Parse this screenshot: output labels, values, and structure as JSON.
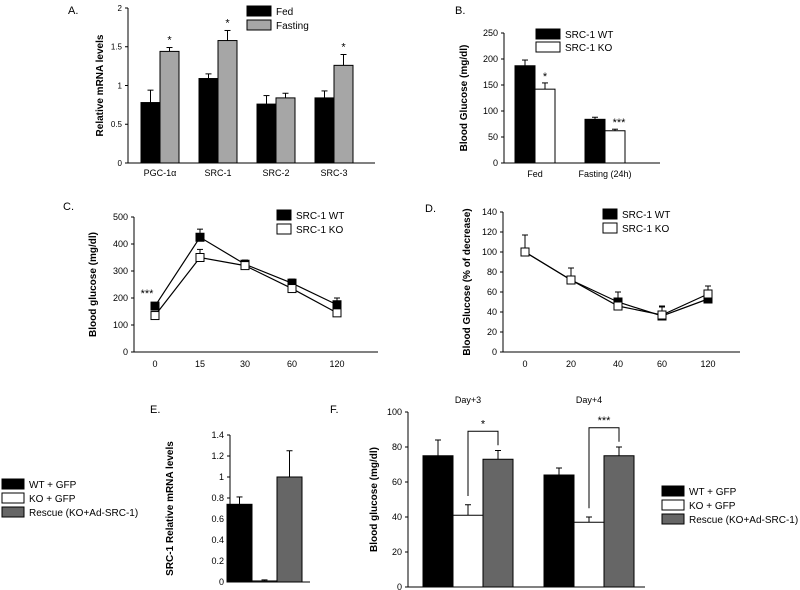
{
  "chart_data": [
    {
      "panel": "A.",
      "type": "bar",
      "ylabel": "Relative mRNA levels",
      "ylim": [
        0,
        2
      ],
      "yticks": [
        "0",
        "0.5",
        "1",
        "1.5",
        "2"
      ],
      "categories": [
        "PGC-1α",
        "SRC-1",
        "SRC-2",
        "SRC-3"
      ],
      "series": [
        {
          "name": "Fed",
          "color": "#000000",
          "values": [
            0.78,
            1.09,
            0.76,
            0.84
          ],
          "errors": [
            0.16,
            0.06,
            0.11,
            0.09
          ]
        },
        {
          "name": "Fasting",
          "color": "#a6a6a6",
          "values": [
            1.44,
            1.58,
            0.84,
            1.26
          ],
          "errors": [
            0.05,
            0.13,
            0.06,
            0.14
          ]
        }
      ],
      "annotations": [
        {
          "category": 0,
          "series": 1,
          "text": "*"
        },
        {
          "category": 1,
          "series": 1,
          "text": "*"
        },
        {
          "category": 3,
          "series": 1,
          "text": "*"
        }
      ],
      "legend": "top-right"
    },
    {
      "panel": "B.",
      "type": "bar",
      "ylabel": "Blood Glucose (mg/dl)",
      "ylim": [
        0,
        250
      ],
      "yticks": [
        "0",
        "50",
        "100",
        "150",
        "200",
        "250"
      ],
      "categories": [
        "Fed",
        "Fasting (24h)"
      ],
      "series": [
        {
          "name": "SRC-1 WT",
          "color": "#000000",
          "values": [
            187,
            84
          ],
          "errors": [
            11,
            4
          ]
        },
        {
          "name": "SRC-1 KO",
          "color": "#ffffff",
          "values": [
            142,
            62
          ],
          "errors": [
            12,
            3
          ]
        }
      ],
      "annotations": [
        {
          "category": 0,
          "series": 1,
          "text": "*"
        },
        {
          "category": 1,
          "series": 1,
          "text": "***"
        }
      ],
      "legend": "top"
    },
    {
      "panel": "C.",
      "type": "line",
      "ylabel": "Blood glucose (mg/dl)",
      "ylim": [
        0,
        500
      ],
      "yticks": [
        "0",
        "100",
        "200",
        "300",
        "400",
        "500"
      ],
      "x": [
        "0",
        "15",
        "30",
        "60",
        "120"
      ],
      "series": [
        {
          "name": "SRC-1 WT",
          "marker": "filled-square",
          "values": [
            170,
            425,
            325,
            255,
            175
          ],
          "errors": [
            10,
            30,
            15,
            15,
            25
          ]
        },
        {
          "name": "SRC-1 KO",
          "marker": "open-square",
          "values": [
            135,
            350,
            320,
            235,
            145
          ],
          "errors": [
            8,
            30,
            20,
            15,
            15
          ]
        }
      ],
      "annotations": [
        {
          "x": 0,
          "text": "***"
        }
      ],
      "legend": "top-right"
    },
    {
      "panel": "D.",
      "type": "line",
      "ylabel": "Blood Glucose  (% of decrease)",
      "ylim": [
        0,
        140
      ],
      "yticks": [
        "0",
        "20",
        "40",
        "60",
        "80",
        "100",
        "120",
        "140"
      ],
      "x": [
        "0",
        "20",
        "40",
        "60",
        "120"
      ],
      "series": [
        {
          "name": "SRC-1 WT",
          "marker": "filled-square",
          "values": [
            100,
            72,
            50,
            36,
            53
          ],
          "errors": [
            17,
            12,
            10,
            9,
            8
          ]
        },
        {
          "name": "SRC-1 KO",
          "marker": "open-square",
          "values": [
            100,
            72,
            46,
            37,
            58
          ],
          "errors": [
            17,
            12,
            8,
            9,
            8
          ]
        }
      ],
      "legend": "top-right"
    },
    {
      "panel": "E.",
      "type": "bar",
      "ylabel": "SRC-1 Relative mRNA levels",
      "ylim": [
        0,
        1.4
      ],
      "yticks": [
        "0",
        "0.2",
        "0.4",
        "0.6",
        "0.8",
        "1",
        "1.2",
        "1.4"
      ],
      "categories": [
        "WT + GFP",
        "KO + GFP",
        "Rescue (KO+Ad-SRC-1)"
      ],
      "values": [
        0.74,
        0.01,
        1.0
      ],
      "errors": [
        0.07,
        0.01,
        0.25
      ],
      "colors": [
        "#000000",
        "#ffffff",
        "#666666"
      ],
      "legend": "left"
    },
    {
      "panel": "F.",
      "type": "bar",
      "ylabel": "Blood glucose (mg/dl)",
      "ylim": [
        0,
        100
      ],
      "yticks": [
        "0",
        "20",
        "40",
        "60",
        "80",
        "100"
      ],
      "categories": [
        "Day+3",
        "Day+4"
      ],
      "series": [
        {
          "name": "WT + GFP",
          "color": "#000000",
          "values": [
            75,
            64
          ],
          "errors": [
            9,
            4
          ]
        },
        {
          "name": "KO + GFP",
          "color": "#ffffff",
          "values": [
            41,
            37
          ],
          "errors": [
            6,
            3
          ]
        },
        {
          "name": "Rescue (KO+Ad-SRC-1)",
          "color": "#666666",
          "values": [
            73,
            75
          ],
          "errors": [
            5,
            5
          ]
        }
      ],
      "annotations": [
        {
          "category": 0,
          "from": 1,
          "to": 2,
          "text": "*"
        },
        {
          "category": 1,
          "from": 1,
          "to": 2,
          "text": "***"
        }
      ],
      "legend": "right"
    }
  ]
}
